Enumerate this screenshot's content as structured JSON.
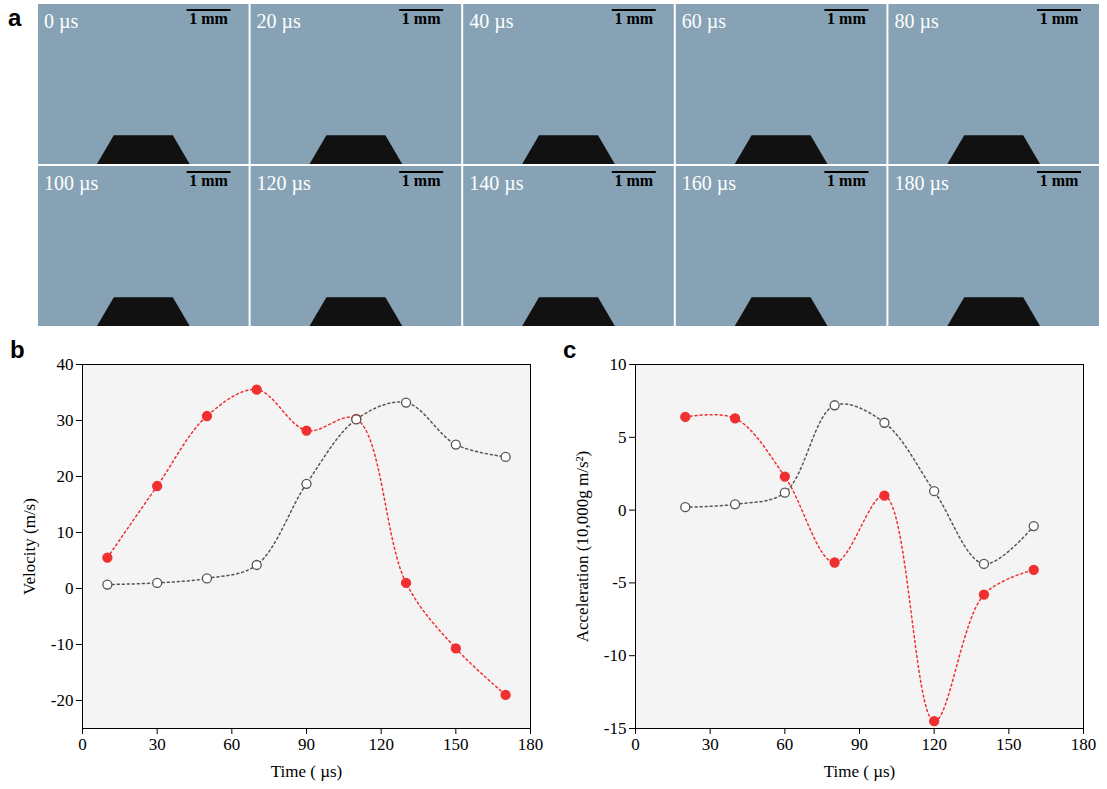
{
  "photo_panel": {
    "panel": "a",
    "frames": [
      {
        "time": "0 µs",
        "scale_bar": "1 mm"
      },
      {
        "time": "20 µs",
        "scale_bar": "1 mm"
      },
      {
        "time": "40 µs",
        "scale_bar": "1 mm"
      },
      {
        "time": "60 µs",
        "scale_bar": "1 mm"
      },
      {
        "time": "80 µs",
        "scale_bar": "1 mm"
      },
      {
        "time": "100 µs",
        "scale_bar": "1 mm"
      },
      {
        "time": "120 µs",
        "scale_bar": "1 mm"
      },
      {
        "time": "140 µs",
        "scale_bar": "1 mm"
      },
      {
        "time": "160 µs",
        "scale_bar": "1 mm"
      },
      {
        "time": "180 µs",
        "scale_bar": "1 mm"
      }
    ]
  },
  "chart_data": [
    {
      "type": "line",
      "panel": "b",
      "x_label": "Time ( µs)",
      "y_label": "Velocity (m/s)",
      "xlim": [
        0,
        180
      ],
      "xticks": [
        0,
        30,
        60,
        90,
        120,
        150,
        180
      ],
      "ylim": [
        -25,
        40
      ],
      "yticks": [
        -20,
        -10,
        0,
        10,
        20,
        30,
        40
      ],
      "series": [
        {
          "color": "#f03030",
          "marker": "circle",
          "line_style": "dotted",
          "x": [
            10,
            30,
            50,
            70,
            90,
            110,
            130,
            150,
            170
          ],
          "values": [
            5.5,
            18.3,
            30.8,
            35.5,
            28.2,
            30.3,
            1.0,
            -10.7,
            -19.0
          ]
        },
        {
          "color": "#555555",
          "marker": "open_circle",
          "line_style": "dotted",
          "x": [
            10,
            30,
            50,
            70,
            90,
            110,
            130,
            150,
            170
          ],
          "values": [
            0.7,
            1.0,
            1.8,
            4.2,
            18.7,
            30.2,
            33.2,
            25.7,
            23.5
          ]
        }
      ]
    },
    {
      "type": "line",
      "panel": "c",
      "x_label": "Time ( µs)",
      "y_label": "Acceleration (10,000g m/s²)",
      "xlim": [
        0,
        180
      ],
      "xticks": [
        0,
        30,
        60,
        90,
        120,
        150,
        180
      ],
      "ylim": [
        -15,
        10
      ],
      "yticks": [
        -15,
        -10,
        -5,
        0,
        5,
        10
      ],
      "series": [
        {
          "color": "#f03030",
          "marker": "circle",
          "line_style": "dotted",
          "x": [
            20,
            40,
            60,
            80,
            100,
            120,
            140,
            160
          ],
          "values": [
            6.4,
            6.3,
            2.3,
            -3.6,
            1.0,
            -14.5,
            -5.8,
            -4.1
          ]
        },
        {
          "color": "#555555",
          "marker": "open_circle",
          "line_style": "dotted",
          "x": [
            20,
            40,
            60,
            80,
            100,
            120,
            140,
            160
          ],
          "values": [
            0.2,
            0.4,
            1.2,
            7.2,
            6.0,
            1.3,
            -3.7,
            -1.1
          ]
        }
      ]
    }
  ]
}
